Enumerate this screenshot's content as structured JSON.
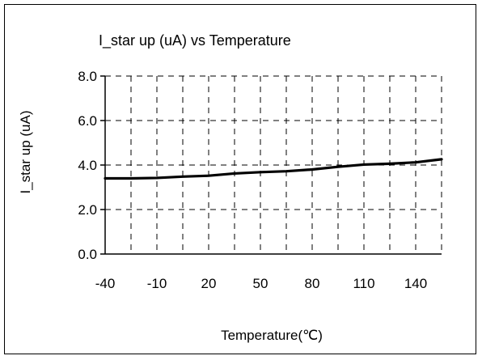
{
  "chart_data": {
    "type": "line",
    "title": "I_star up (uA) vs Temperature",
    "xlabel": "Temperature(℃)",
    "ylabel": "I_star up (uA)",
    "xlim": [
      -40,
      155
    ],
    "ylim": [
      0,
      8
    ],
    "x_ticks": [
      -40,
      -10,
      20,
      50,
      80,
      110,
      140
    ],
    "x_tick_labels": [
      "-40",
      "-10",
      "20",
      "50",
      "80",
      "110",
      "140"
    ],
    "y_ticks": [
      0,
      2,
      4,
      6,
      8
    ],
    "y_tick_labels": [
      "0.0",
      "2.0",
      "4.0",
      "6.0",
      "8.0"
    ],
    "grid": true,
    "grid_style": "dashed",
    "legend": "none",
    "series": [
      {
        "color": "#000000",
        "x": [
          -40,
          -25,
          -10,
          5,
          20,
          35,
          50,
          65,
          80,
          95,
          110,
          125,
          140,
          155
        ],
        "y": [
          3.4,
          3.4,
          3.42,
          3.48,
          3.52,
          3.62,
          3.68,
          3.72,
          3.8,
          3.92,
          4.02,
          4.06,
          4.12,
          4.26
        ]
      }
    ]
  }
}
